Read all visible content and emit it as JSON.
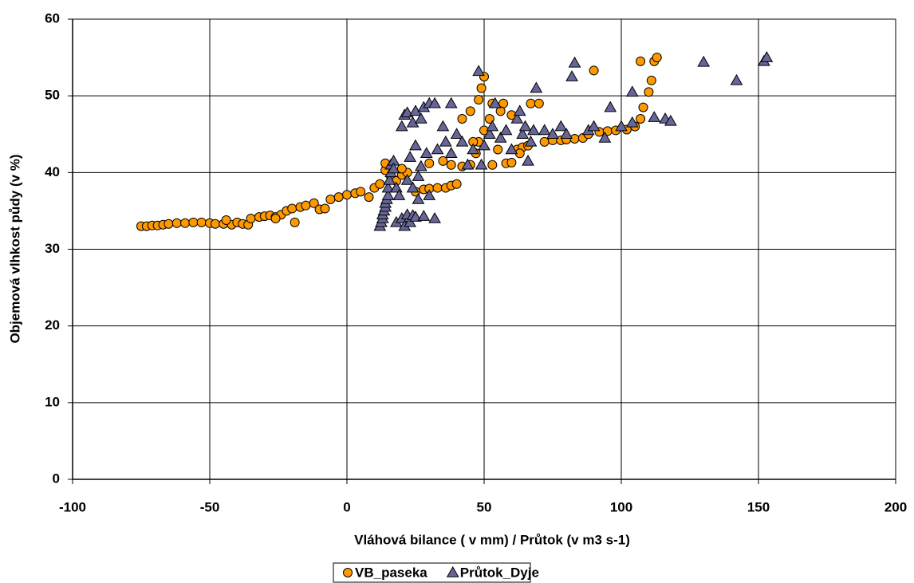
{
  "chart_data": {
    "type": "scatter",
    "x_label": "Vláhová bilance ( v mm) / Průtok (v m3 s-1)",
    "y_label": "Objemová vlhkost půdy (v %)",
    "xlim": [
      -100,
      200
    ],
    "ylim": [
      0,
      60
    ],
    "xticks": [
      -100,
      -50,
      0,
      50,
      100,
      150,
      200
    ],
    "yticks": [
      0,
      10,
      20,
      30,
      40,
      50,
      60
    ],
    "grid": true,
    "legend": "bottom",
    "series": [
      {
        "name": "VB_paseka",
        "color": "#FF9900",
        "marker": "circle",
        "x": [
          -75,
          -73,
          -71,
          -69,
          -67,
          -65,
          -62,
          -59,
          -56,
          -53,
          -50,
          -48,
          -45,
          -42,
          -40,
          -38,
          -36,
          -35,
          -32,
          -30,
          -28,
          -26,
          -24,
          -22,
          -20,
          -19,
          -17,
          -15,
          -12,
          -10,
          -8,
          -6,
          -3,
          0,
          3,
          5,
          8,
          10,
          12,
          14,
          16,
          18,
          20,
          22,
          25,
          28,
          30,
          33,
          36,
          38,
          40,
          42,
          45,
          47,
          48,
          50,
          52,
          50,
          49,
          53,
          55,
          58,
          60,
          62,
          64,
          66,
          67,
          70,
          72,
          75,
          78,
          80,
          83,
          86,
          88,
          90,
          92,
          95,
          98,
          102,
          105,
          107,
          108,
          110,
          111,
          112,
          113,
          107,
          42,
          45,
          48,
          53,
          57,
          60,
          56,
          46,
          63,
          30,
          35,
          38,
          14,
          20,
          -44,
          -26
        ],
        "y": [
          33,
          33,
          33.1,
          33.1,
          33.2,
          33.3,
          33.4,
          33.4,
          33.5,
          33.5,
          33.4,
          33.3,
          33.3,
          33.2,
          33.5,
          33.3,
          33.2,
          34,
          34.2,
          34.3,
          34.4,
          34.2,
          34.5,
          35,
          35.3,
          33.5,
          35.5,
          35.7,
          36,
          35.2,
          35.3,
          36.5,
          36.8,
          37.1,
          37.3,
          37.5,
          36.8,
          38,
          38.5,
          40.3,
          39.5,
          38.9,
          39.7,
          40,
          37.5,
          37.8,
          37.9,
          38,
          38,
          38.3,
          38.5,
          40.8,
          41,
          42.5,
          44,
          45.5,
          47,
          52.5,
          51,
          41,
          43,
          41.2,
          41.3,
          43,
          43.3,
          43.5,
          49,
          49,
          44,
          44.2,
          44.2,
          44.3,
          44.4,
          44.5,
          45,
          53.3,
          45.3,
          45.4,
          45.5,
          45.6,
          46,
          47,
          48.5,
          50.5,
          52,
          54.5,
          55,
          54.5,
          47,
          48,
          49.5,
          49,
          49,
          47.5,
          48,
          44,
          42.5,
          41.2,
          41.5,
          41,
          41.2,
          40.5,
          33.8,
          34
        ]
      },
      {
        "name": "Průtok_Dyje",
        "color": "#666699",
        "marker": "triangle",
        "x": [
          12,
          12.5,
          13,
          13,
          13.5,
          14,
          14,
          14.5,
          15,
          15,
          15.5,
          16,
          16,
          17,
          17,
          18,
          18,
          19,
          20,
          21,
          22,
          23,
          24,
          25,
          26,
          28,
          30,
          32,
          20,
          21,
          22,
          24,
          25,
          27,
          28,
          30,
          32,
          35,
          38,
          40,
          42,
          44,
          46,
          48,
          49,
          50,
          52,
          53,
          54,
          56,
          58,
          60,
          62,
          63,
          64,
          65,
          66,
          67,
          68,
          69,
          72,
          75,
          78,
          80,
          82,
          83,
          88,
          90,
          94,
          96,
          100,
          104,
          104,
          112,
          116,
          118,
          130,
          142,
          152,
          153,
          23,
          25,
          27,
          29,
          33,
          36,
          38,
          22,
          24,
          26
        ],
        "y": [
          33,
          33.5,
          34,
          34.5,
          35,
          35.5,
          36,
          36.5,
          37,
          38,
          39,
          40,
          41,
          41.5,
          40.5,
          38,
          33.5,
          37,
          34,
          33,
          34.5,
          33.5,
          34.4,
          34.2,
          36.5,
          34.3,
          37,
          34,
          46,
          47.5,
          47.8,
          46.5,
          48,
          47,
          48.5,
          49,
          49,
          46,
          49,
          45,
          44,
          41,
          43,
          53.2,
          41,
          43.5,
          45,
          46,
          49,
          44.5,
          45.5,
          43,
          47,
          48,
          45,
          46,
          41.5,
          44,
          45.5,
          51,
          45.5,
          45,
          46,
          45,
          52.5,
          54.3,
          45.5,
          46,
          44.5,
          48.5,
          46,
          46.5,
          50.5,
          47.2,
          47,
          46.7,
          54.4,
          52,
          54.5,
          55,
          42,
          43.5,
          40.8,
          42.5,
          43,
          44,
          42.5,
          39,
          38,
          39.5
        ]
      }
    ]
  }
}
